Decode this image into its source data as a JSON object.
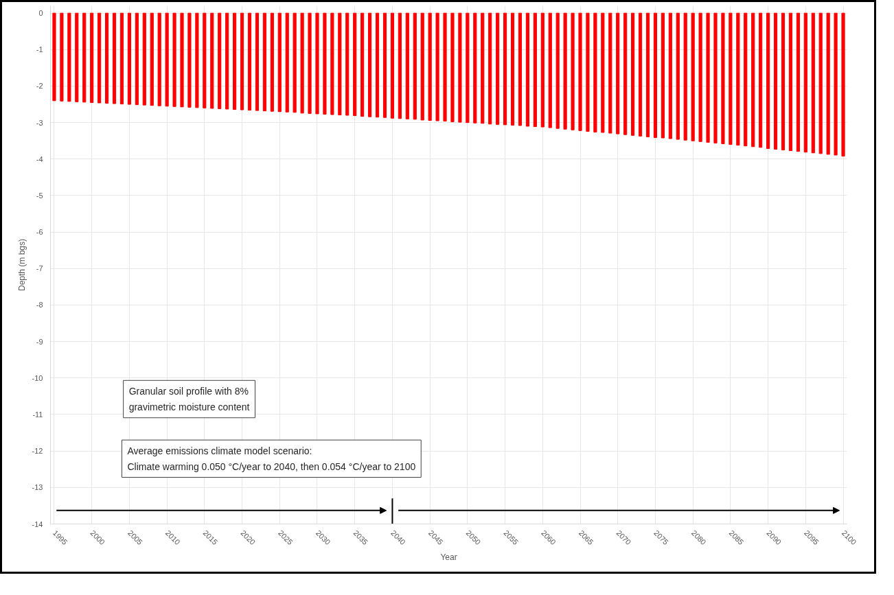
{
  "chart_data": {
    "type": "bar",
    "xlabel": "Year",
    "ylabel": "Depth (m bgs)",
    "x": [
      1995,
      1996,
      1997,
      1998,
      1999,
      2000,
      2001,
      2002,
      2003,
      2004,
      2005,
      2006,
      2007,
      2008,
      2009,
      2010,
      2011,
      2012,
      2013,
      2014,
      2015,
      2016,
      2017,
      2018,
      2019,
      2020,
      2021,
      2022,
      2023,
      2024,
      2025,
      2026,
      2027,
      2028,
      2029,
      2030,
      2031,
      2032,
      2033,
      2034,
      2035,
      2036,
      2037,
      2038,
      2039,
      2040,
      2041,
      2042,
      2043,
      2044,
      2045,
      2046,
      2047,
      2048,
      2049,
      2050,
      2051,
      2052,
      2053,
      2054,
      2055,
      2056,
      2057,
      2058,
      2059,
      2060,
      2061,
      2062,
      2063,
      2064,
      2065,
      2066,
      2067,
      2068,
      2069,
      2070,
      2071,
      2072,
      2073,
      2074,
      2075,
      2076,
      2077,
      2078,
      2079,
      2080,
      2081,
      2082,
      2083,
      2084,
      2085,
      2086,
      2087,
      2088,
      2089,
      2090,
      2091,
      2092,
      2093,
      2094,
      2095,
      2096,
      2097,
      2098,
      2099,
      2100
    ],
    "series": [
      {
        "color": "#ff0000",
        "values": [
          -2.4,
          -2.41,
          -2.42,
          -2.43,
          -2.44,
          -2.45,
          -2.46,
          -2.47,
          -2.48,
          -2.49,
          -2.5,
          -2.51,
          -2.52,
          -2.53,
          -2.54,
          -2.55,
          -2.56,
          -2.57,
          -2.58,
          -2.59,
          -2.6,
          -2.61,
          -2.62,
          -2.63,
          -2.64,
          -2.65,
          -2.66,
          -2.67,
          -2.68,
          -2.69,
          -2.7,
          -2.71,
          -2.72,
          -2.74,
          -2.75,
          -2.76,
          -2.77,
          -2.78,
          -2.79,
          -2.8,
          -2.81,
          -2.83,
          -2.84,
          -2.85,
          -2.86,
          -2.88,
          -2.89,
          -2.9,
          -2.91,
          -2.93,
          -2.94,
          -2.95,
          -2.96,
          -2.98,
          -2.99,
          -3.0,
          -3.01,
          -3.02,
          -3.04,
          -3.05,
          -3.06,
          -3.07,
          -3.08,
          -3.1,
          -3.11,
          -3.12,
          -3.14,
          -3.16,
          -3.18,
          -3.2,
          -3.22,
          -3.24,
          -3.26,
          -3.27,
          -3.29,
          -3.31,
          -3.33,
          -3.35,
          -3.37,
          -3.39,
          -3.41,
          -3.42,
          -3.44,
          -3.46,
          -3.48,
          -3.5,
          -3.52,
          -3.54,
          -3.56,
          -3.58,
          -3.6,
          -3.62,
          -3.64,
          -3.66,
          -3.68,
          -3.71,
          -3.73,
          -3.75,
          -3.77,
          -3.79,
          -3.81,
          -3.83,
          -3.85,
          -3.87,
          -3.89,
          -3.92
        ]
      },
      {
        "type": "line",
        "color": "#000000",
        "x": [
          2040,
          2040
        ],
        "values": [
          -14,
          -13.3
        ]
      }
    ],
    "xlim": [
      1994.5,
      2100.5
    ],
    "ylim": [
      -14,
      0.2
    ],
    "xticks": [
      1995,
      2000,
      2005,
      2010,
      2015,
      2020,
      2025,
      2030,
      2035,
      2040,
      2045,
      2050,
      2055,
      2060,
      2065,
      2070,
      2075,
      2080,
      2085,
      2090,
      2095,
      2100
    ],
    "yticks": [
      0,
      -1,
      -2,
      -3,
      -4,
      -5,
      -6,
      -7,
      -8,
      -9,
      -10,
      -11,
      -12,
      -13,
      -14
    ],
    "grid": true,
    "annotations": [
      "Granular soil profile with 8%\ngravimetric moisture content",
      "Average emissions climate model scenario:\nClimate warming 0.050 °C/year to 2040, then 0.054 °C/year to 2100"
    ]
  }
}
